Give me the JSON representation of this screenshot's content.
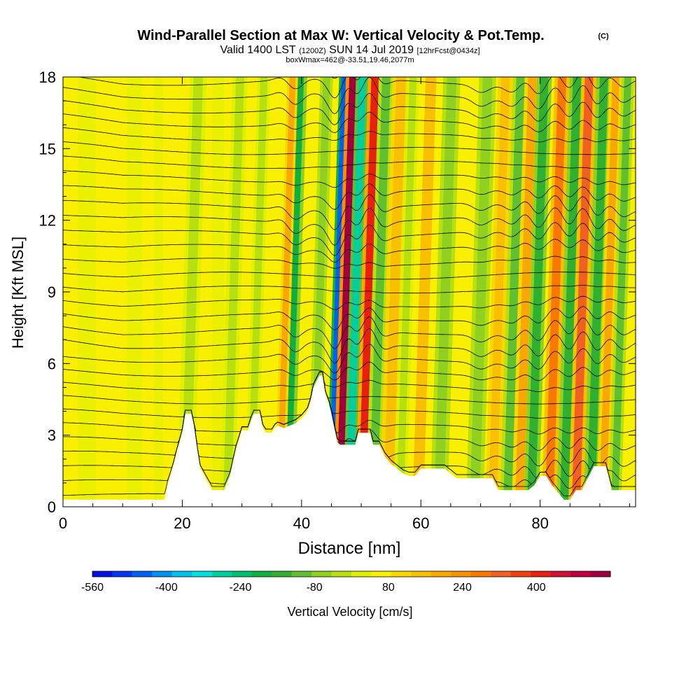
{
  "chart_data": {
    "type": "heatmap",
    "title": "Wind-Parallel Section at Max W: Vertical Velocity & Pot.Temp.",
    "copyright_mark": "(C)",
    "subtitle_parts": [
      "Valid 1400 LST",
      "(1200Z)",
      "SUN 14 Jul 2019",
      "[12hrFcst@0434z]"
    ],
    "subtitle2": "boxWmax=462@-33.51,19.46,2077m",
    "xlabel": "Distance [nm]",
    "ylabel": "Height [Kft MSL]",
    "xlim": [
      0,
      96
    ],
    "ylim": [
      0,
      18
    ],
    "x_ticks": [
      "0",
      "20",
      "40",
      "60",
      "80"
    ],
    "y_ticks": [
      "0",
      "3",
      "6",
      "9",
      "12",
      "15",
      "18"
    ],
    "colorbar": {
      "label": "Vertical Velocity [cm/s]",
      "tick_labels": [
        "-560",
        "-400",
        "-240",
        "-80",
        "80",
        "240",
        "400"
      ],
      "range": [
        -560,
        560
      ],
      "step": 40,
      "colors": [
        "#0010e0",
        "#0038f0",
        "#0060f0",
        "#0090f0",
        "#00c0f0",
        "#00e0e0",
        "#00d0a0",
        "#00c070",
        "#10b040",
        "#30b030",
        "#60c030",
        "#90d020",
        "#b8e010",
        "#e0f000",
        "#f8f000",
        "#f8d800",
        "#f8c000",
        "#f8a800",
        "#f89000",
        "#f87800",
        "#f06020",
        "#f04010",
        "#e82010",
        "#d01030",
        "#c00040",
        "#a00040"
      ]
    },
    "terrain_profile": {
      "x": [
        0,
        17,
        17.5,
        18,
        18.5,
        19,
        20,
        20.5,
        21,
        21.5,
        22,
        22.5,
        23,
        25,
        26,
        27,
        28,
        29,
        30,
        31,
        31.5,
        32,
        32.5,
        33,
        33.5,
        34,
        35,
        35.5,
        36,
        37,
        38,
        39,
        40,
        41,
        41.5,
        42,
        43,
        43.5,
        44,
        44.7,
        45,
        46,
        46.5,
        47,
        48,
        49,
        49.5,
        50,
        51,
        51.5,
        52,
        53,
        54,
        55,
        56,
        57,
        58,
        59,
        60,
        61,
        62,
        63,
        64,
        66,
        67,
        68,
        70,
        72,
        73,
        74,
        75,
        76,
        78,
        79,
        80,
        81,
        82,
        83,
        84,
        85,
        86,
        87,
        88,
        89,
        90,
        91,
        92,
        93,
        96
      ],
      "y": [
        0.3,
        0.3,
        0.9,
        1.3,
        1.7,
        2.2,
        3.1,
        3.9,
        3.9,
        3.9,
        3.3,
        2.4,
        1.6,
        0.7,
        0.7,
        0.7,
        1.3,
        2.4,
        3.2,
        3.2,
        3.6,
        3.9,
        3.9,
        3.9,
        3.3,
        3.1,
        3.1,
        3.3,
        3.4,
        3.3,
        3.4,
        3.5,
        3.7,
        4.0,
        4.4,
        5.0,
        5.5,
        5.5,
        4.7,
        4.2,
        3.9,
        2.7,
        2.6,
        2.6,
        2.6,
        2.6,
        3.1,
        3.1,
        3.1,
        3.1,
        2.6,
        2.6,
        2.1,
        1.8,
        1.6,
        1.4,
        1.3,
        1.3,
        1.6,
        1.6,
        1.6,
        1.6,
        1.6,
        1.2,
        1.2,
        1.2,
        1.2,
        1.2,
        0.7,
        0.7,
        0.7,
        0.7,
        0.7,
        0.9,
        1.3,
        1.3,
        0.9,
        0.6,
        0.3,
        0.3,
        0.7,
        0.7,
        1.2,
        1.7,
        1.7,
        1.7,
        0.7,
        0.7,
        0.7
      ]
    },
    "velocity_bands": [
      {
        "x": 37.5,
        "w_cm_s": -220,
        "width_nm": 1.4
      },
      {
        "x": 36.3,
        "w_cm_s": 120,
        "width_nm": 1.0
      },
      {
        "x": 42.0,
        "w_cm_s": -100,
        "width_nm": 1.2
      },
      {
        "x": 45.0,
        "w_cm_s": -480,
        "width_nm": 1.0
      },
      {
        "x": 46.5,
        "w_cm_s": 440,
        "width_nm": 1.4
      },
      {
        "x": 48.0,
        "w_cm_s": -300,
        "width_nm": 1.2
      },
      {
        "x": 50.2,
        "w_cm_s": 340,
        "width_nm": 1.4
      },
      {
        "x": 52.0,
        "w_cm_s": -140,
        "width_nm": 1.4
      },
      {
        "x": 54.5,
        "w_cm_s": 100,
        "width_nm": 1.6
      },
      {
        "x": 56.5,
        "w_cm_s": -80,
        "width_nm": 1.2
      },
      {
        "x": 59.5,
        "w_cm_s": 80,
        "width_nm": 1.8
      },
      {
        "x": 63.0,
        "w_cm_s": -90,
        "width_nm": 1.6
      },
      {
        "x": 69.0,
        "w_cm_s": -120,
        "width_nm": 1.6
      },
      {
        "x": 72.0,
        "w_cm_s": 90,
        "width_nm": 1.4
      },
      {
        "x": 74.5,
        "w_cm_s": -140,
        "width_nm": 1.4
      },
      {
        "x": 76.5,
        "w_cm_s": 140,
        "width_nm": 1.4
      },
      {
        "x": 78.5,
        "w_cm_s": -200,
        "width_nm": 1.4
      },
      {
        "x": 81.5,
        "w_cm_s": 200,
        "width_nm": 1.4
      },
      {
        "x": 84.0,
        "w_cm_s": -180,
        "width_nm": 1.4
      },
      {
        "x": 86.0,
        "w_cm_s": 260,
        "width_nm": 1.4
      },
      {
        "x": 88.5,
        "w_cm_s": -200,
        "width_nm": 1.4
      },
      {
        "x": 90.5,
        "w_cm_s": 150,
        "width_nm": 1.2
      },
      {
        "x": 92.5,
        "w_cm_s": -150,
        "width_nm": 1.2
      },
      {
        "x": 20.5,
        "w_cm_s": -60,
        "width_nm": 1.6
      },
      {
        "x": 27.5,
        "w_cm_s": -60,
        "width_nm": 1.4
      },
      {
        "x": 31.5,
        "w_cm_s": -80,
        "width_nm": 1.2
      }
    ],
    "theta_contours": {
      "count": 32,
      "base_height_kft": 0.4,
      "spacing_kft": 0.58
    }
  }
}
